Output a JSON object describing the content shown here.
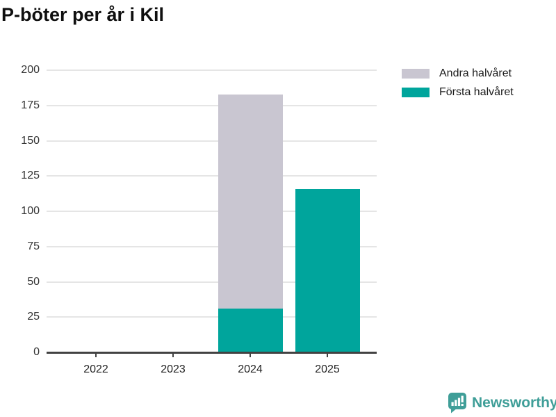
{
  "title": "P-böter per år i Kil",
  "legend": {
    "items": [
      {
        "label": "Andra halvåret",
        "color": "#c9c6d1"
      },
      {
        "label": "Första halvåret",
        "color": "#00a59c"
      }
    ]
  },
  "chart_data": {
    "type": "bar",
    "stacked": true,
    "title": "P-böter per år i Kil",
    "categories": [
      "2022",
      "2023",
      "2024",
      "2025"
    ],
    "series": [
      {
        "name": "Första halvåret",
        "color": "#00a59c",
        "values": [
          0,
          0,
          31,
          116
        ]
      },
      {
        "name": "Andra halvåret",
        "color": "#c9c6d1",
        "values": [
          0,
          0,
          152,
          0
        ]
      }
    ],
    "xlabel": "",
    "ylabel": "",
    "ylim": [
      0,
      200
    ],
    "yticks": [
      0,
      25,
      50,
      75,
      100,
      125,
      150,
      175,
      200
    ],
    "grid": true,
    "legend_position": "top-right"
  },
  "colors": {
    "accent_teal": "#00a59c",
    "accent_gray": "#c9c6d1",
    "axis": "#424242",
    "gridline": "#e5e5e5",
    "brand_teal": "#3f9e98"
  },
  "branding": {
    "name": "Newsworthy",
    "icon": "newsworthy-chart-bubble-icon"
  }
}
